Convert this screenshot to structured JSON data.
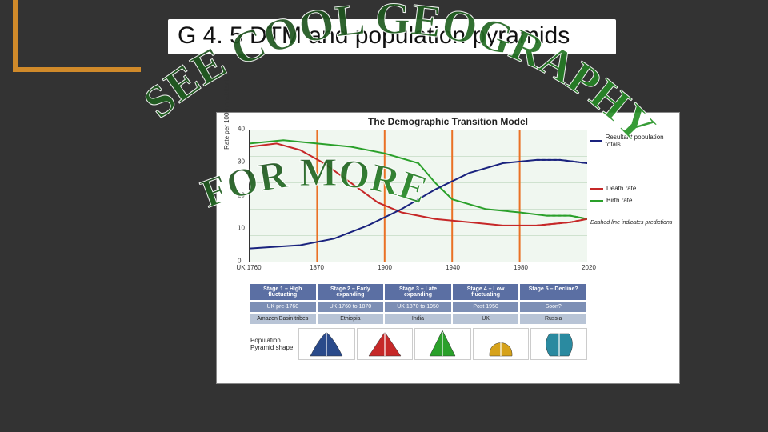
{
  "title": "G 4. 5 DTM and population pyramids",
  "overlay": {
    "line1": "SEE COOL GEOGRAPHY",
    "line2": "FOR MORE"
  },
  "chart": {
    "type": "line",
    "title": "The Demographic Transition Model",
    "ylabel": "Rate per 1000 inhabitants",
    "background_color": "#f0f7f0",
    "grid_color": "#cfe2cf",
    "yticks": [
      0,
      10,
      20,
      30,
      40
    ],
    "ylim": [
      0,
      40
    ],
    "xticks": [
      "UK 1760",
      "1870",
      "1900",
      "1940",
      "1980",
      "2020"
    ],
    "stage_boundaries_pct": [
      20,
      40,
      60,
      80
    ],
    "separator_color": "#ea7125",
    "series": {
      "birth": {
        "label": "Birth rate",
        "color": "#2aa02a",
        "points": [
          [
            0,
            36
          ],
          [
            10,
            37
          ],
          [
            20,
            36
          ],
          [
            30,
            35
          ],
          [
            40,
            33
          ],
          [
            50,
            30
          ],
          [
            55,
            24
          ],
          [
            60,
            19
          ],
          [
            70,
            16
          ],
          [
            80,
            15
          ],
          [
            88,
            14
          ],
          [
            95,
            14
          ],
          [
            100,
            13
          ]
        ]
      },
      "death": {
        "label": "Death rate",
        "color": "#c62828",
        "points": [
          [
            0,
            35
          ],
          [
            8,
            36
          ],
          [
            15,
            34
          ],
          [
            22,
            30
          ],
          [
            30,
            24
          ],
          [
            38,
            18
          ],
          [
            45,
            15
          ],
          [
            55,
            13
          ],
          [
            65,
            12
          ],
          [
            75,
            11
          ],
          [
            85,
            11
          ],
          [
            95,
            12
          ],
          [
            100,
            13
          ]
        ]
      },
      "population": {
        "label": "Resultant population totals",
        "color": "#1a237e",
        "points": [
          [
            0,
            4
          ],
          [
            15,
            5
          ],
          [
            25,
            7
          ],
          [
            35,
            11
          ],
          [
            45,
            16
          ],
          [
            55,
            22
          ],
          [
            65,
            27
          ],
          [
            75,
            30
          ],
          [
            85,
            31
          ],
          [
            92,
            31
          ],
          [
            100,
            30
          ]
        ]
      }
    },
    "legend_note": "Dashed line indicates predictions"
  },
  "stages": {
    "headers": [
      "Stage 1 – High fluctuating",
      "Stage 2 – Early expanding",
      "Stage 3 – Late expanding",
      "Stage 4 – Low fluctuating",
      "Stage 5 – Decline?"
    ],
    "periods": [
      "UK pre-1760",
      "UK 1760 to 1870",
      "UK 1870 to 1950",
      "Post 1950",
      "Soon?"
    ],
    "examples": [
      "Amazon Basin tribes",
      "Ethiopia",
      "India",
      "UK",
      "Russia"
    ]
  },
  "pyramids": {
    "row_label": "Population Pyramid shape",
    "shapes": [
      {
        "fill": "#2a4a8a",
        "type": "concave"
      },
      {
        "fill": "#c62828",
        "type": "triangle"
      },
      {
        "fill": "#2aa02a",
        "type": "triangle-tall"
      },
      {
        "fill": "#d6a21a",
        "type": "dome"
      },
      {
        "fill": "#2a8aa0",
        "type": "urn"
      }
    ]
  },
  "accent_color": "#d08a2a",
  "page_bg": "#333333",
  "overlay_colors": {
    "start": "#1b3a1b",
    "end": "#2aa02a"
  }
}
